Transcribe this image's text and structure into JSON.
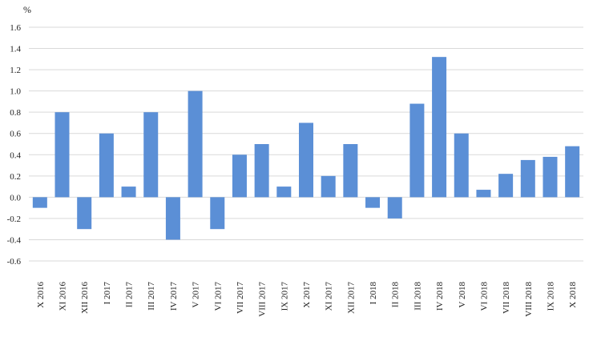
{
  "chart_data": {
    "type": "bar",
    "unit_label": "%",
    "y_ticks": [
      "1.6",
      "1.4",
      "1.2",
      "1.0",
      "0.8",
      "0.6",
      "0.4",
      "0.2",
      "0.0",
      "-0.2",
      "-0.4",
      "-0.6"
    ],
    "ylim": [
      -0.6,
      1.6
    ],
    "grid": true,
    "bar_color": "#5b8fd6",
    "categories": [
      "X 2016",
      "XI 2016",
      "XII 2016",
      "I 2017",
      "II 2017",
      "III 2017",
      "IV 2017",
      "V 2017",
      "VI 2017",
      "VII 2017",
      "VIII 2017",
      "IX 2017",
      "X 2017",
      "XI 2017",
      "XII 2017",
      "I 2018",
      "II 2018",
      "III 2018",
      "IV 2018",
      "V 2018",
      "VI 2018",
      "VII 2018",
      "VIII 2018",
      "IX 2018",
      "X 2018"
    ],
    "values": [
      -0.1,
      0.8,
      -0.3,
      0.6,
      0.1,
      0.8,
      -0.4,
      1.0,
      -0.3,
      0.4,
      0.5,
      0.1,
      0.7,
      0.2,
      0.5,
      -0.1,
      -0.2,
      0.88,
      1.32,
      0.6,
      0.07,
      0.22,
      0.35,
      0.38,
      0.48
    ]
  }
}
